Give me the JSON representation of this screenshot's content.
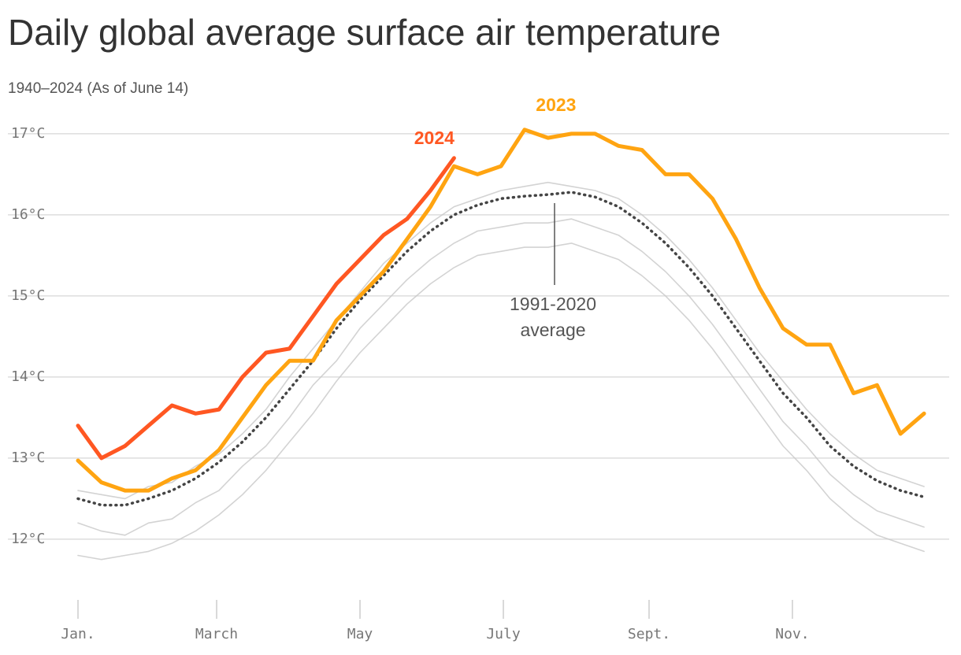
{
  "chart_data": {
    "type": "line",
    "title": "Daily global average surface air temperature",
    "subtitle": "1940–2024 (As of June 14)",
    "annotation": [
      "1991-2020",
      "average"
    ],
    "x": [
      0,
      10,
      20,
      30,
      40,
      50,
      60,
      70,
      80,
      90,
      100,
      110,
      120,
      130,
      140,
      150,
      160,
      170,
      180,
      190,
      200,
      210,
      220,
      230,
      240,
      250,
      260,
      270,
      280,
      290,
      300,
      310,
      320,
      330,
      340,
      350,
      360
    ],
    "xlim": [
      0,
      364
    ],
    "xticks": [
      {
        "value": 0,
        "label": "Jan."
      },
      {
        "value": 59,
        "label": "March"
      },
      {
        "value": 120,
        "label": "May"
      },
      {
        "value": 181,
        "label": "July"
      },
      {
        "value": 243,
        "label": "Sept."
      },
      {
        "value": 304,
        "label": "Nov."
      }
    ],
    "ylim": [
      11.3,
      17.3
    ],
    "yticks": [
      {
        "value": 12,
        "label": "12°C"
      },
      {
        "value": 13,
        "label": "13°C"
      },
      {
        "value": 14,
        "label": "14°C"
      },
      {
        "value": 15,
        "label": "15°C"
      },
      {
        "value": 16,
        "label": "16°C"
      },
      {
        "value": 17,
        "label": "17°C"
      }
    ],
    "grid": true,
    "series": [
      {
        "color": "#c8c8c8",
        "values": [
          11.8,
          11.75,
          11.8,
          11.85,
          11.95,
          12.1,
          12.3,
          12.55,
          12.85,
          13.2,
          13.55,
          13.95,
          14.3,
          14.6,
          14.9,
          15.15,
          15.35,
          15.5,
          15.55,
          15.6,
          15.6,
          15.65,
          15.55,
          15.45,
          15.25,
          15.0,
          14.7,
          14.35,
          13.95,
          13.55,
          13.15,
          12.85,
          12.5,
          12.25,
          12.05,
          11.95,
          11.85
        ]
      },
      {
        "color": "#c8c8c8",
        "values": [
          12.2,
          12.1,
          12.05,
          12.2,
          12.25,
          12.45,
          12.6,
          12.9,
          13.15,
          13.5,
          13.9,
          14.2,
          14.6,
          14.9,
          15.2,
          15.45,
          15.65,
          15.8,
          15.85,
          15.9,
          15.9,
          15.95,
          15.85,
          15.75,
          15.55,
          15.3,
          15.0,
          14.65,
          14.25,
          13.85,
          13.45,
          13.15,
          12.8,
          12.55,
          12.35,
          12.25,
          12.15
        ]
      },
      {
        "color": "#c8c8c8",
        "values": [
          12.6,
          12.55,
          12.5,
          12.65,
          12.7,
          12.9,
          13.05,
          13.3,
          13.6,
          14.0,
          14.35,
          14.7,
          15.05,
          15.4,
          15.65,
          15.9,
          16.1,
          16.2,
          16.3,
          16.35,
          16.4,
          16.35,
          16.3,
          16.2,
          16.0,
          15.75,
          15.45,
          15.1,
          14.7,
          14.3,
          13.95,
          13.6,
          13.3,
          13.05,
          12.85,
          12.75,
          12.65
        ]
      },
      {
        "color": "#444444",
        "dashed": true,
        "values": [
          12.5,
          12.42,
          12.42,
          12.5,
          12.6,
          12.75,
          12.95,
          13.2,
          13.5,
          13.85,
          14.2,
          14.6,
          14.95,
          15.25,
          15.55,
          15.8,
          16.0,
          16.12,
          16.2,
          16.23,
          16.25,
          16.28,
          16.22,
          16.1,
          15.9,
          15.65,
          15.35,
          15.0,
          14.6,
          14.2,
          13.8,
          13.5,
          13.15,
          12.9,
          12.72,
          12.6,
          12.52
        ]
      },
      {
        "name": "2023",
        "color": "#ffa411",
        "values": [
          12.97,
          12.7,
          12.6,
          12.6,
          12.75,
          12.85,
          13.1,
          13.5,
          13.9,
          14.2,
          14.2,
          14.7,
          15.0,
          15.3,
          15.7,
          16.1,
          16.6,
          16.5,
          16.6,
          17.05,
          16.95,
          17.0,
          17.0,
          16.85,
          16.8,
          16.5,
          16.5,
          16.2,
          15.7,
          15.1,
          14.6,
          14.4,
          14.4,
          13.8,
          13.9,
          13.3,
          13.55
        ]
      },
      {
        "name": "2024",
        "color": "#ff5722",
        "values": [
          13.4,
          13.0,
          13.15,
          13.4,
          13.65,
          13.55,
          13.6,
          14.0,
          14.3,
          14.35,
          14.75,
          15.15,
          15.45,
          15.75,
          15.95,
          16.3,
          16.7,
          null,
          null,
          null,
          null,
          null,
          null,
          null,
          null,
          null,
          null,
          null,
          null,
          null,
          null,
          null,
          null,
          null,
          null,
          null,
          null
        ]
      }
    ]
  }
}
